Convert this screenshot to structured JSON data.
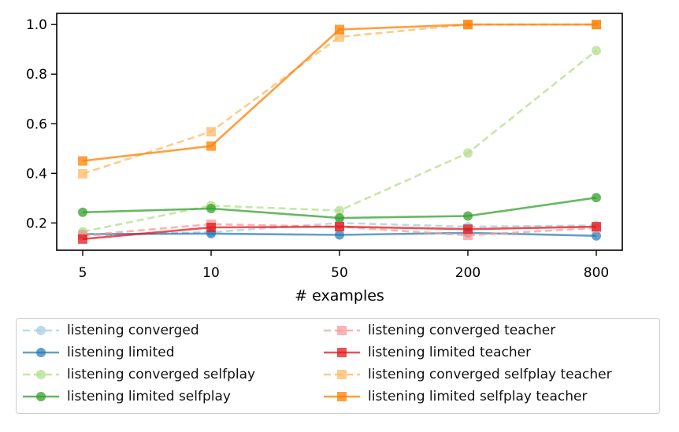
{
  "chart_data": {
    "type": "line",
    "categories": [
      "5",
      "10",
      "50",
      "200",
      "800"
    ],
    "xlabel": "# examples",
    "ylabel": "",
    "ylim": [
      0.09,
      1.045
    ],
    "yticks": [
      0.2,
      0.4,
      0.6,
      0.8,
      1.0
    ],
    "ytick_labels": [
      "0.2",
      "0.4",
      "0.6",
      "0.8",
      "1.0"
    ],
    "grid": false,
    "legend_position": "below",
    "series": [
      {
        "name": "listening converged",
        "color": "#a6cee3",
        "dashed": true,
        "marker": "circle",
        "alpha": 0.75,
        "values": [
          0.15,
          0.163,
          0.2,
          0.185,
          0.19
        ]
      },
      {
        "name": "listening limited",
        "color": "#1f78b4",
        "dashed": false,
        "marker": "circle",
        "alpha": 0.7,
        "values": [
          0.155,
          0.157,
          0.152,
          0.16,
          0.148
        ]
      },
      {
        "name": "listening converged selfplay",
        "color": "#b2df8a",
        "dashed": true,
        "marker": "circle",
        "alpha": 0.75,
        "values": [
          0.165,
          0.27,
          0.25,
          0.482,
          0.895
        ]
      },
      {
        "name": "listening limited selfplay",
        "color": "#33a02c",
        "dashed": false,
        "marker": "circle",
        "alpha": 0.75,
        "values": [
          0.243,
          0.258,
          0.22,
          0.228,
          0.302
        ]
      },
      {
        "name": "listening converged teacher",
        "color": "#fb9a99",
        "dashed": true,
        "marker": "square",
        "alpha": 0.75,
        "values": [
          0.15,
          0.195,
          0.185,
          0.15,
          0.18
        ]
      },
      {
        "name": "listening limited teacher",
        "color": "#e31a1c",
        "dashed": false,
        "marker": "square",
        "alpha": 0.75,
        "values": [
          0.135,
          0.182,
          0.185,
          0.175,
          0.185
        ]
      },
      {
        "name": "listening converged selfplay teacher",
        "color": "#fdbf6f",
        "dashed": true,
        "marker": "square",
        "alpha": 0.8,
        "values": [
          0.398,
          0.568,
          0.95,
          1.0,
          1.0
        ]
      },
      {
        "name": "listening limited selfplay teacher",
        "color": "#ff7f00",
        "dashed": false,
        "marker": "square",
        "alpha": 0.75,
        "values": [
          0.45,
          0.51,
          0.98,
          1.0,
          1.0
        ]
      }
    ]
  }
}
